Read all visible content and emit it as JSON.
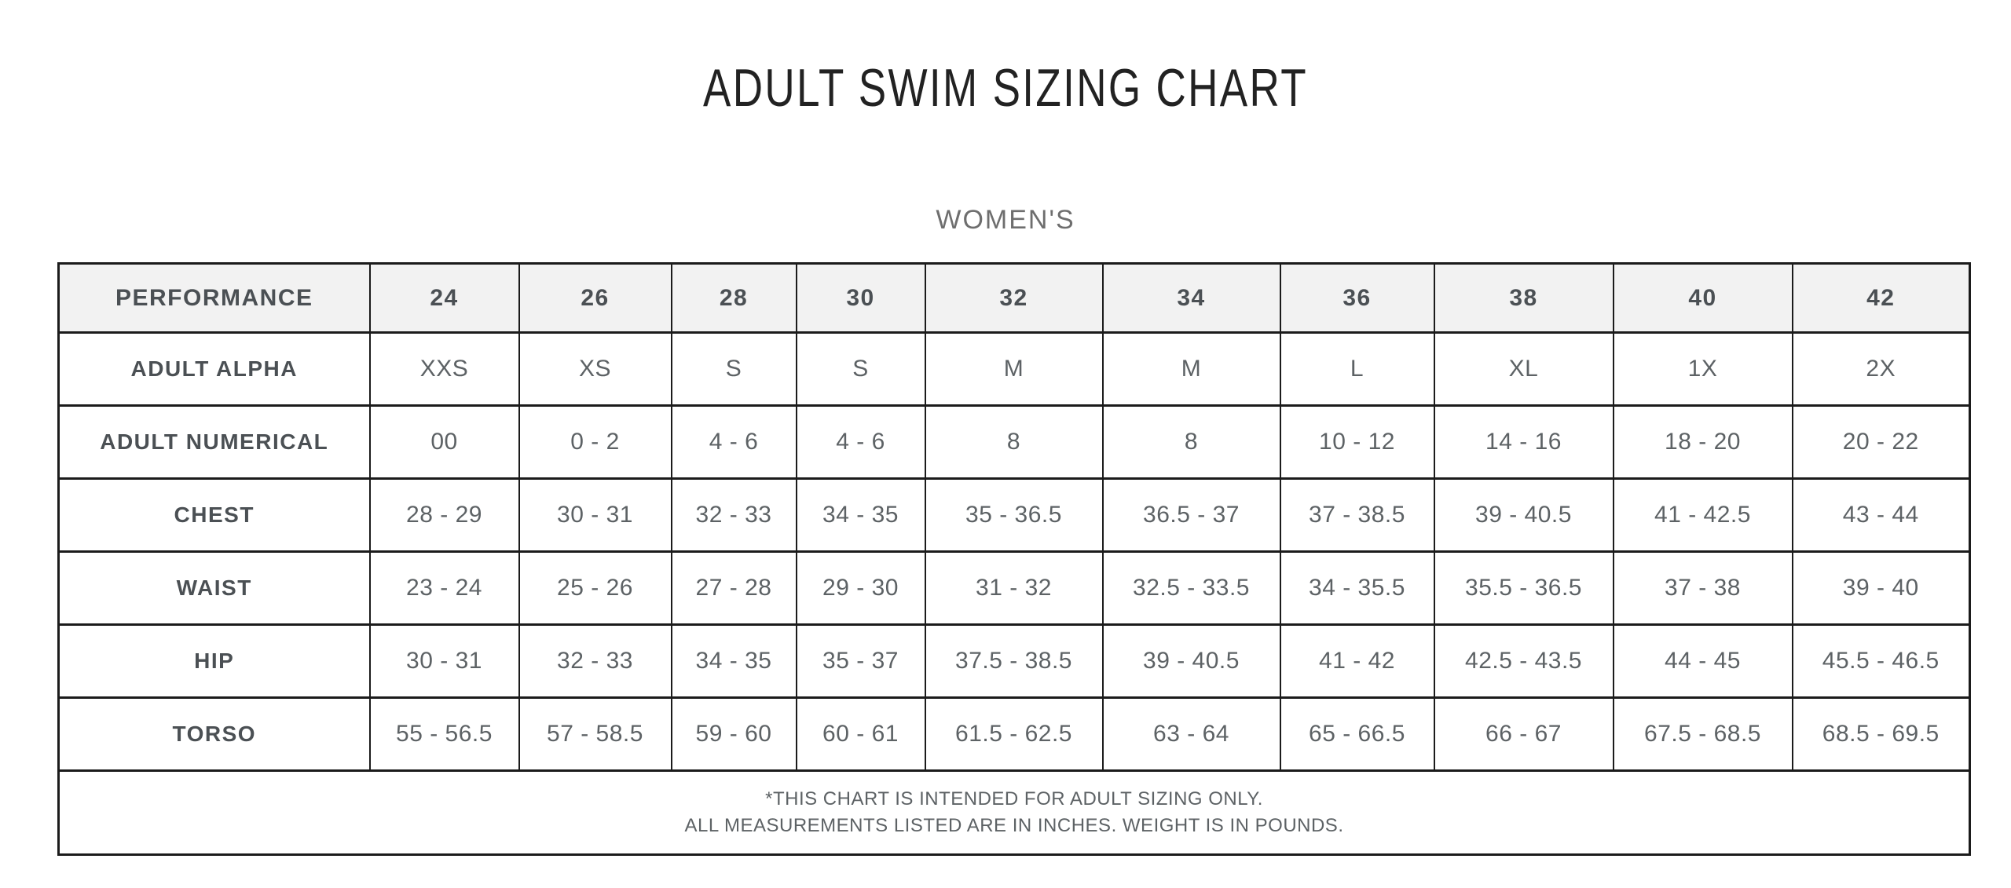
{
  "page": {
    "title": "ADULT SWIM SIZING CHART",
    "section": "WOMEN'S"
  },
  "table": {
    "header": {
      "label": "PERFORMANCE",
      "sizes": [
        "24",
        "26",
        "28",
        "30",
        "32",
        "34",
        "36",
        "38",
        "40",
        "42"
      ]
    },
    "rows": [
      {
        "label": "ADULT ALPHA",
        "values": [
          "XXS",
          "XS",
          "S",
          "S",
          "M",
          "M",
          "L",
          "XL",
          "1X",
          "2X"
        ]
      },
      {
        "label": "ADULT NUMERICAL",
        "values": [
          "00",
          "0 - 2",
          "4 - 6",
          "4 - 6",
          "8",
          "8",
          "10 - 12",
          "14 - 16",
          "18 - 20",
          "20 - 22"
        ]
      },
      {
        "label": "CHEST",
        "values": [
          "28 - 29",
          "30 - 31",
          "32 - 33",
          "34 - 35",
          "35 - 36.5",
          "36.5 - 37",
          "37 - 38.5",
          "39 - 40.5",
          "41 - 42.5",
          "43 - 44"
        ]
      },
      {
        "label": "WAIST",
        "values": [
          "23 - 24",
          "25 - 26",
          "27 - 28",
          "29 - 30",
          "31 - 32",
          "32.5 - 33.5",
          "34 - 35.5",
          "35.5 - 36.5",
          "37 - 38",
          "39 - 40"
        ]
      },
      {
        "label": "HIP",
        "values": [
          "30 - 31",
          "32 - 33",
          "34 - 35",
          "35 - 37",
          "37.5 - 38.5",
          "39 - 40.5",
          "41 - 42",
          "42.5 - 43.5",
          "44 - 45",
          "45.5 - 46.5"
        ]
      },
      {
        "label": "TORSO",
        "values": [
          "55 - 56.5",
          "57 - 58.5",
          "59 - 60",
          "60 - 61",
          "61.5 - 62.5",
          "63 - 64",
          "65 - 66.5",
          "66 - 67",
          "67.5 - 68.5",
          "68.5 - 69.5"
        ]
      }
    ],
    "footnotes": [
      "*THIS CHART IS INTENDED FOR ADULT SIZING ONLY.",
      "ALL MEASUREMENTS LISTED ARE IN INCHES. WEIGHT IS IN POUNDS."
    ]
  },
  "colors": {
    "border": "#1b1b1b",
    "header_background": "#f2f2f2",
    "label_text": "#4b5054",
    "value_text": "#5d6265",
    "title_text": "#222222",
    "subtitle_text": "#6e6e6e",
    "page_background": "#ffffff"
  }
}
